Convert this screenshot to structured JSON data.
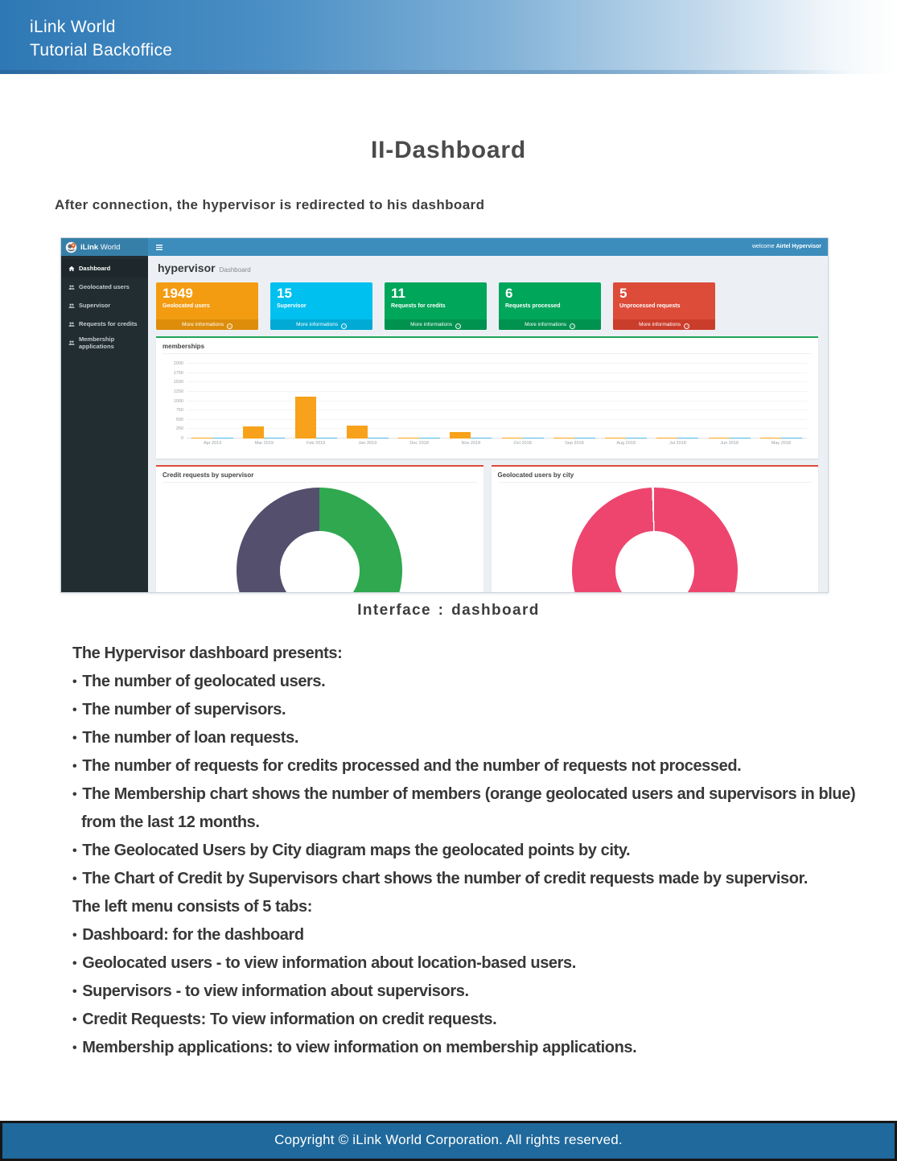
{
  "doc": {
    "header": {
      "line1": "iLink World",
      "line2": "Tutorial Backoffice"
    },
    "title": "II-Dashboard",
    "subtitle": "After connection, the hypervisor is redirected to his dashboard",
    "caption": "Interface : dashboard",
    "body": {
      "lines": [
        {
          "bullet": false,
          "indent": false,
          "text": "The Hypervisor dashboard presents:"
        },
        {
          "bullet": true,
          "indent": false,
          "text": "The number of geolocated users."
        },
        {
          "bullet": true,
          "indent": false,
          "text": "The number of supervisors."
        },
        {
          "bullet": true,
          "indent": false,
          "text": "The number of loan requests."
        },
        {
          "bullet": true,
          "indent": false,
          "text": "The number of requests for credits processed and the number of requests not processed."
        },
        {
          "bullet": true,
          "indent": false,
          "text": "The Membership chart shows the number of members (orange geolocated users and supervisors in blue)"
        },
        {
          "bullet": false,
          "indent": true,
          "text": "from the last 12 months."
        },
        {
          "bullet": true,
          "indent": false,
          "text": "The Geolocated Users by City diagram maps the geolocated points by city."
        },
        {
          "bullet": true,
          "indent": false,
          "text": "The Chart of Credit by Supervisors chart shows the number of credit requests made by supervisor."
        },
        {
          "bullet": false,
          "indent": false,
          "text": "The left menu consists of 5 tabs:"
        },
        {
          "bullet": true,
          "indent": false,
          "text": "Dashboard: for the dashboard"
        },
        {
          "bullet": true,
          "indent": false,
          "text": "Geolocated users - to view information about location-based users."
        },
        {
          "bullet": true,
          "indent": false,
          "text": "Supervisors - to view information about supervisors."
        },
        {
          "bullet": true,
          "indent": false,
          "text": "Credit Requests: To view information on credit requests."
        },
        {
          "bullet": true,
          "indent": false,
          "text": "Membership applications: to view information on membership applications."
        }
      ]
    },
    "footer": {
      "text": "Copyright © iLink World Corporation. All rights reserved."
    }
  },
  "app": {
    "brand": {
      "bold": "iLink",
      "rest": "World"
    },
    "topbar": {
      "welcome_prefix": "welcome",
      "welcome_user": "Airtel Hypervisor"
    },
    "sidebar": {
      "items": [
        {
          "label": "Dashboard",
          "icon": "home-icon",
          "active": true
        },
        {
          "label": "Geolocated users",
          "icon": "users-icon",
          "active": false
        },
        {
          "label": "Supervisor",
          "icon": "users-icon",
          "active": false
        },
        {
          "label": "Requests for credits",
          "icon": "users-icon",
          "active": false
        },
        {
          "label": "Membership applications",
          "icon": "users-icon",
          "active": false
        }
      ]
    },
    "heading": {
      "title": "hypervisor",
      "subtitle": "Dashboard"
    },
    "cards": [
      {
        "value": "1949",
        "label": "Geolocated users",
        "footer": "More informations",
        "bg": "#f39c12",
        "footer_bg": "#dd8d0a"
      },
      {
        "value": "15",
        "label": "Supervisor",
        "footer": "More informations",
        "bg": "#00c0ef",
        "footer_bg": "#00aad4"
      },
      {
        "value": "11",
        "label": "Requests for credits",
        "footer": "More informations",
        "bg": "#00a65a",
        "footer_bg": "#00924f"
      },
      {
        "value": "6",
        "label": "Requests processed",
        "footer": "More informations",
        "bg": "#00a65a",
        "footer_bg": "#00924f"
      },
      {
        "value": "5",
        "label": "Unprocessed requests",
        "footer": "More informations",
        "bg": "#dd4b39",
        "footer_bg": "#cb3d2b"
      }
    ],
    "colors": {
      "topbar": "#3c8dbc",
      "logo_bg": "#367fa9",
      "sidebar_bg": "#222d32",
      "content_bg": "#ecf0f5"
    }
  },
  "chart_data": [
    {
      "type": "bar",
      "title": "memberships",
      "categories": [
        "Apr 2019",
        "Mar 2019",
        "Feb 2019",
        "Jan 2019",
        "Dec 2018",
        "Nov 2018",
        "Oct 2018",
        "Sep 2018",
        "Aug 2018",
        "Jul 2018",
        "Jun 2018",
        "May 2018"
      ],
      "series": [
        {
          "name": "Geolocated users",
          "color": "#f7a21a",
          "values": [
            20,
            330,
            1120,
            355,
            15,
            165,
            12,
            12,
            12,
            12,
            12,
            12
          ]
        },
        {
          "name": "Supervisors",
          "color": "#4db6e8",
          "values": [
            12,
            14,
            16,
            28,
            14,
            12,
            12,
            12,
            12,
            14,
            14,
            12
          ]
        }
      ],
      "xlabel": "",
      "ylabel": "",
      "ylim": [
        0,
        2000
      ],
      "yticks": [
        0,
        250,
        500,
        750,
        1000,
        1250,
        1500,
        1750,
        2000
      ],
      "grid": true,
      "legend": "none"
    },
    {
      "type": "pie",
      "title": "Credit requests by supervisor",
      "donut": true,
      "legend": "none",
      "slices": [
        {
          "value": 50,
          "color": "#2fa84f"
        },
        {
          "value": 50,
          "color": "#554f6e"
        }
      ]
    },
    {
      "type": "pie",
      "title": "Geolocated users by city",
      "donut": true,
      "legend": "none",
      "slices": [
        {
          "value": 99.6,
          "color": "#ed456e"
        },
        {
          "value": 0.4,
          "color": "#ffffff"
        }
      ]
    }
  ]
}
